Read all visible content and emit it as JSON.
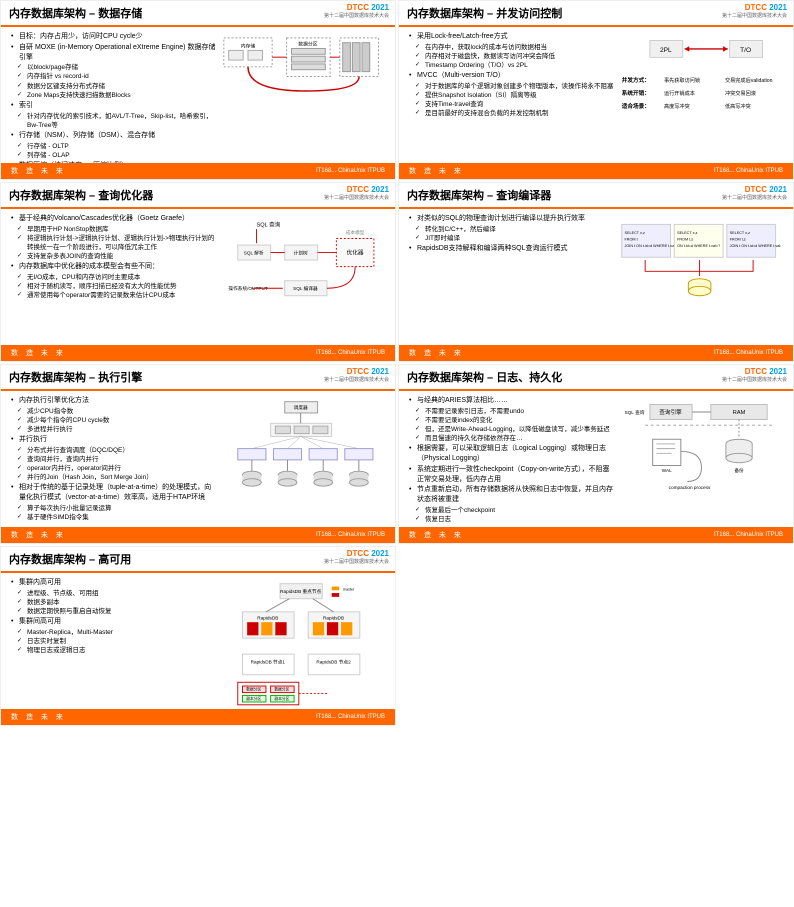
{
  "conference": {
    "name": "DTCC",
    "year": "2021",
    "subtitle": "第十二届中国数据库技术大会",
    "color": "#ff6600",
    "year_color": "#00a0e0"
  },
  "footer": {
    "left": "数 造 未 来",
    "right": "IT168... ChinaUnix ITPUB"
  },
  "slides": [
    {
      "title": "内存数据库架构 – 数据存储",
      "bullets": [
        {
          "lvl": 1,
          "text": "目标：内存占用少，访问时CPU cycle少"
        },
        {
          "lvl": 1,
          "text": "自研 MOXE (in-Memory Operational eXtreme Engine) 数据存储引擎"
        },
        {
          "lvl": 2,
          "text": "以block/page存储"
        },
        {
          "lvl": 2,
          "text": "内存指针 vs record-id"
        },
        {
          "lvl": 2,
          "text": "数据分区键支持分布式存储"
        },
        {
          "lvl": 2,
          "text": "Zone Maps支持快速扫描数据Blocks"
        },
        {
          "lvl": 1,
          "text": "索引"
        },
        {
          "lvl": 2,
          "text": "针对内存优化的索引技术，如AVL/T-Tree，Skip-list，哈希索引，Bw-Tree等"
        },
        {
          "lvl": 1,
          "text": "行存储（NSM）、列存储（DSM）、混合存储"
        },
        {
          "lvl": 2,
          "text": "行存储 - OLTP"
        },
        {
          "lvl": 2,
          "text": "列存储 - OLAP"
        },
        {
          "lvl": 1,
          "text": "数据压缩（访问速度 vs 压缩比例）"
        },
        {
          "lvl": 2,
          "text": "游程、Bitmap、字典、LZ0/LZ4"
        }
      ],
      "diagram": "storage"
    },
    {
      "title": "内存数据库架构 – 并发访问控制",
      "bullets": [
        {
          "lvl": 1,
          "text": "采用Lock-free/Latch-free方式"
        },
        {
          "lvl": 2,
          "text": "在内存中，获取lock的成本与访问数据相当"
        },
        {
          "lvl": 2,
          "text": "内存相对于磁盘快，数据读写访问冲突会降低"
        },
        {
          "lvl": 2,
          "text": "Timestamp Ordering（T/O）vs 2PL"
        },
        {
          "lvl": 1,
          "text": "MVCC（Multi-version T/O）"
        },
        {
          "lvl": 2,
          "text": "对于数据库的单个逻辑对象创建多个物理版本，读操作将永不阻塞"
        },
        {
          "lvl": 2,
          "text": "提供Snapshot Isolation（SI）隔离等级"
        },
        {
          "lvl": 2,
          "text": "支持Time-travel查询"
        },
        {
          "lvl": 2,
          "text": "是目前最好的支持混合负载的并发控制机制"
        }
      ],
      "diagram": "concurrency"
    },
    {
      "title": "内存数据库架构 – 查询优化器",
      "bullets": [
        {
          "lvl": 1,
          "text": "基于经典的Volcano/Cascades优化器（Goetz Graefe）"
        },
        {
          "lvl": 2,
          "text": "早期用于HP NonStop数据库"
        },
        {
          "lvl": 2,
          "text": "将逻辑执行计划->逻辑执行计划、逻辑执行计划->物理执行计划的转换统一在一个阶段进行，可以降低冗余工作"
        },
        {
          "lvl": 2,
          "text": "支持复杂多表JOIN的查询性能"
        },
        {
          "lvl": 1,
          "text": "内存数据库中优化器的成本模型会有些不同："
        },
        {
          "lvl": 2,
          "text": "无I/O成本，CPU和内存访问时主要成本"
        },
        {
          "lvl": 2,
          "text": "相对于随机读写，顺序扫描已经没有太大的性能优势"
        },
        {
          "lvl": 2,
          "text": "通常使用每个operator需要的记录数来估计CPU成本"
        }
      ],
      "diagram": "optimizer"
    },
    {
      "title": "内存数据库架构 – 查询编译器",
      "bullets": [
        {
          "lvl": 1,
          "text": "对类似的SQL的物理查询计划进行编译以提升执行效率"
        },
        {
          "lvl": 2,
          "text": "转化到C/C++，然后编译"
        },
        {
          "lvl": 2,
          "text": "JIT即时编译"
        },
        {
          "lvl": 1,
          "text": "RapidsDB支持解释和编译两种SQL查询运行模式"
        }
      ],
      "diagram": "compiler"
    },
    {
      "title": "内存数据库架构 – 执行引擎",
      "bullets": [
        {
          "lvl": 1,
          "text": "内存执行引擎优化方法"
        },
        {
          "lvl": 2,
          "text": "减少CPU指令数"
        },
        {
          "lvl": 2,
          "text": "减少每个指令的CPU cycle数"
        },
        {
          "lvl": 2,
          "text": "多进程并行执行"
        },
        {
          "lvl": 1,
          "text": "并行执行"
        },
        {
          "lvl": 2,
          "text": "分布式并行查询调度（DQC/DQE）"
        },
        {
          "lvl": 2,
          "text": "查询间并行，查询内并行"
        },
        {
          "lvl": 2,
          "text": "operator内并行，operator间并行"
        },
        {
          "lvl": 2,
          "text": "并行的Join（Hash Join，Sort Merge Join）"
        },
        {
          "lvl": 1,
          "text": "相对于传统的基于记录处理（tuple-at-a-time）的处理模式，向量化执行模式（vector-at-a-time）效率高，适用于HTAP环境"
        },
        {
          "lvl": 2,
          "text": "算子每次执行小批量记录运算"
        },
        {
          "lvl": 2,
          "text": "基于硬件SIMD指令集"
        }
      ],
      "diagram": "execution"
    },
    {
      "title": "内存数据库架构 – 日志、持久化",
      "bullets": [
        {
          "lvl": 1,
          "text": "与经典的ARIES算法相比……"
        },
        {
          "lvl": 2,
          "text": "不需要记录索引日志，不需要undo"
        },
        {
          "lvl": 2,
          "text": "不需要记录index的变化"
        },
        {
          "lvl": 2,
          "text": "但，还是Write-Ahead-Logging，以降低磁盘读写，减少事务延迟"
        },
        {
          "lvl": 2,
          "text": "而且慢速的持久化存储依然存在…"
        },
        {
          "lvl": 1,
          "text": "根据需要，可以采取逻辑日志（Logical Logging）或物理日志（Physical Logging）"
        },
        {
          "lvl": 1,
          "text": "系统定期进行一致性checkpoint（Copy-on-write方式），不阻塞正常交易处理，低内存占用"
        },
        {
          "lvl": 1,
          "text": "节点重新启动，所有存储数据将从快照和日志中恢复，并且内存状态将被重建"
        },
        {
          "lvl": 2,
          "text": "恢复最后一个checkpoint"
        },
        {
          "lvl": 2,
          "text": "恢复日志"
        }
      ],
      "diagram": "logging"
    },
    {
      "title": "内存数据库架构 – 高可用",
      "bullets": [
        {
          "lvl": 1,
          "text": "集群内高可用"
        },
        {
          "lvl": 2,
          "text": "进程级、节点级、可用组"
        },
        {
          "lvl": 2,
          "text": "数据多副本"
        },
        {
          "lvl": 2,
          "text": "数据定期快照与重启自动恢复"
        },
        {
          "lvl": 1,
          "text": "集群间高可用"
        },
        {
          "lvl": 2,
          "text": "Master-Replica，Multi-Master"
        },
        {
          "lvl": 2,
          "text": "日志实时复制"
        },
        {
          "lvl": 2,
          "text": "物理日志或逻辑日志"
        }
      ],
      "diagram": "ha"
    }
  ],
  "diagrams": {
    "concurrency": {
      "left": "2PL",
      "right": "T/O",
      "rows": [
        [
          "并发方式：",
          "事先获取访问锁",
          "交易完成后validation"
        ],
        [
          "系统开销：",
          "运行开销成本",
          "冲突交易回滚"
        ],
        [
          "适合场景：",
          "高度写冲突",
          "低高写冲突"
        ]
      ]
    },
    "optimizer": {
      "top": "SQL 查询",
      "boxes": [
        "SQL 解析",
        "计划树",
        "优化器",
        "SQL 编译器"
      ],
      "input": "操作系统/OUTPUT",
      "note": "成本模型"
    },
    "compiler": {
      "boxes": [
        "SELECT x,z FROM t JOIN t ON t.id=d WHERE t.val=?",
        "SELECT x,z FROM t,s ON t.id=d WHERE t.val=?",
        "SELECT x,z FROM t,s JOIN t ON t.id=d WHERE t.val=?"
      ]
    },
    "logging": {
      "labels": [
        "SQL 查询",
        "查询引擎",
        "RAM",
        "WAL",
        "备份",
        "compaction process"
      ]
    },
    "ha": {
      "labels": [
        "RapidsDB 重点节点",
        "master",
        "RapidsDB 节点1",
        "RapidsDB 节点2",
        "数据分区",
        "副本分区"
      ]
    }
  }
}
